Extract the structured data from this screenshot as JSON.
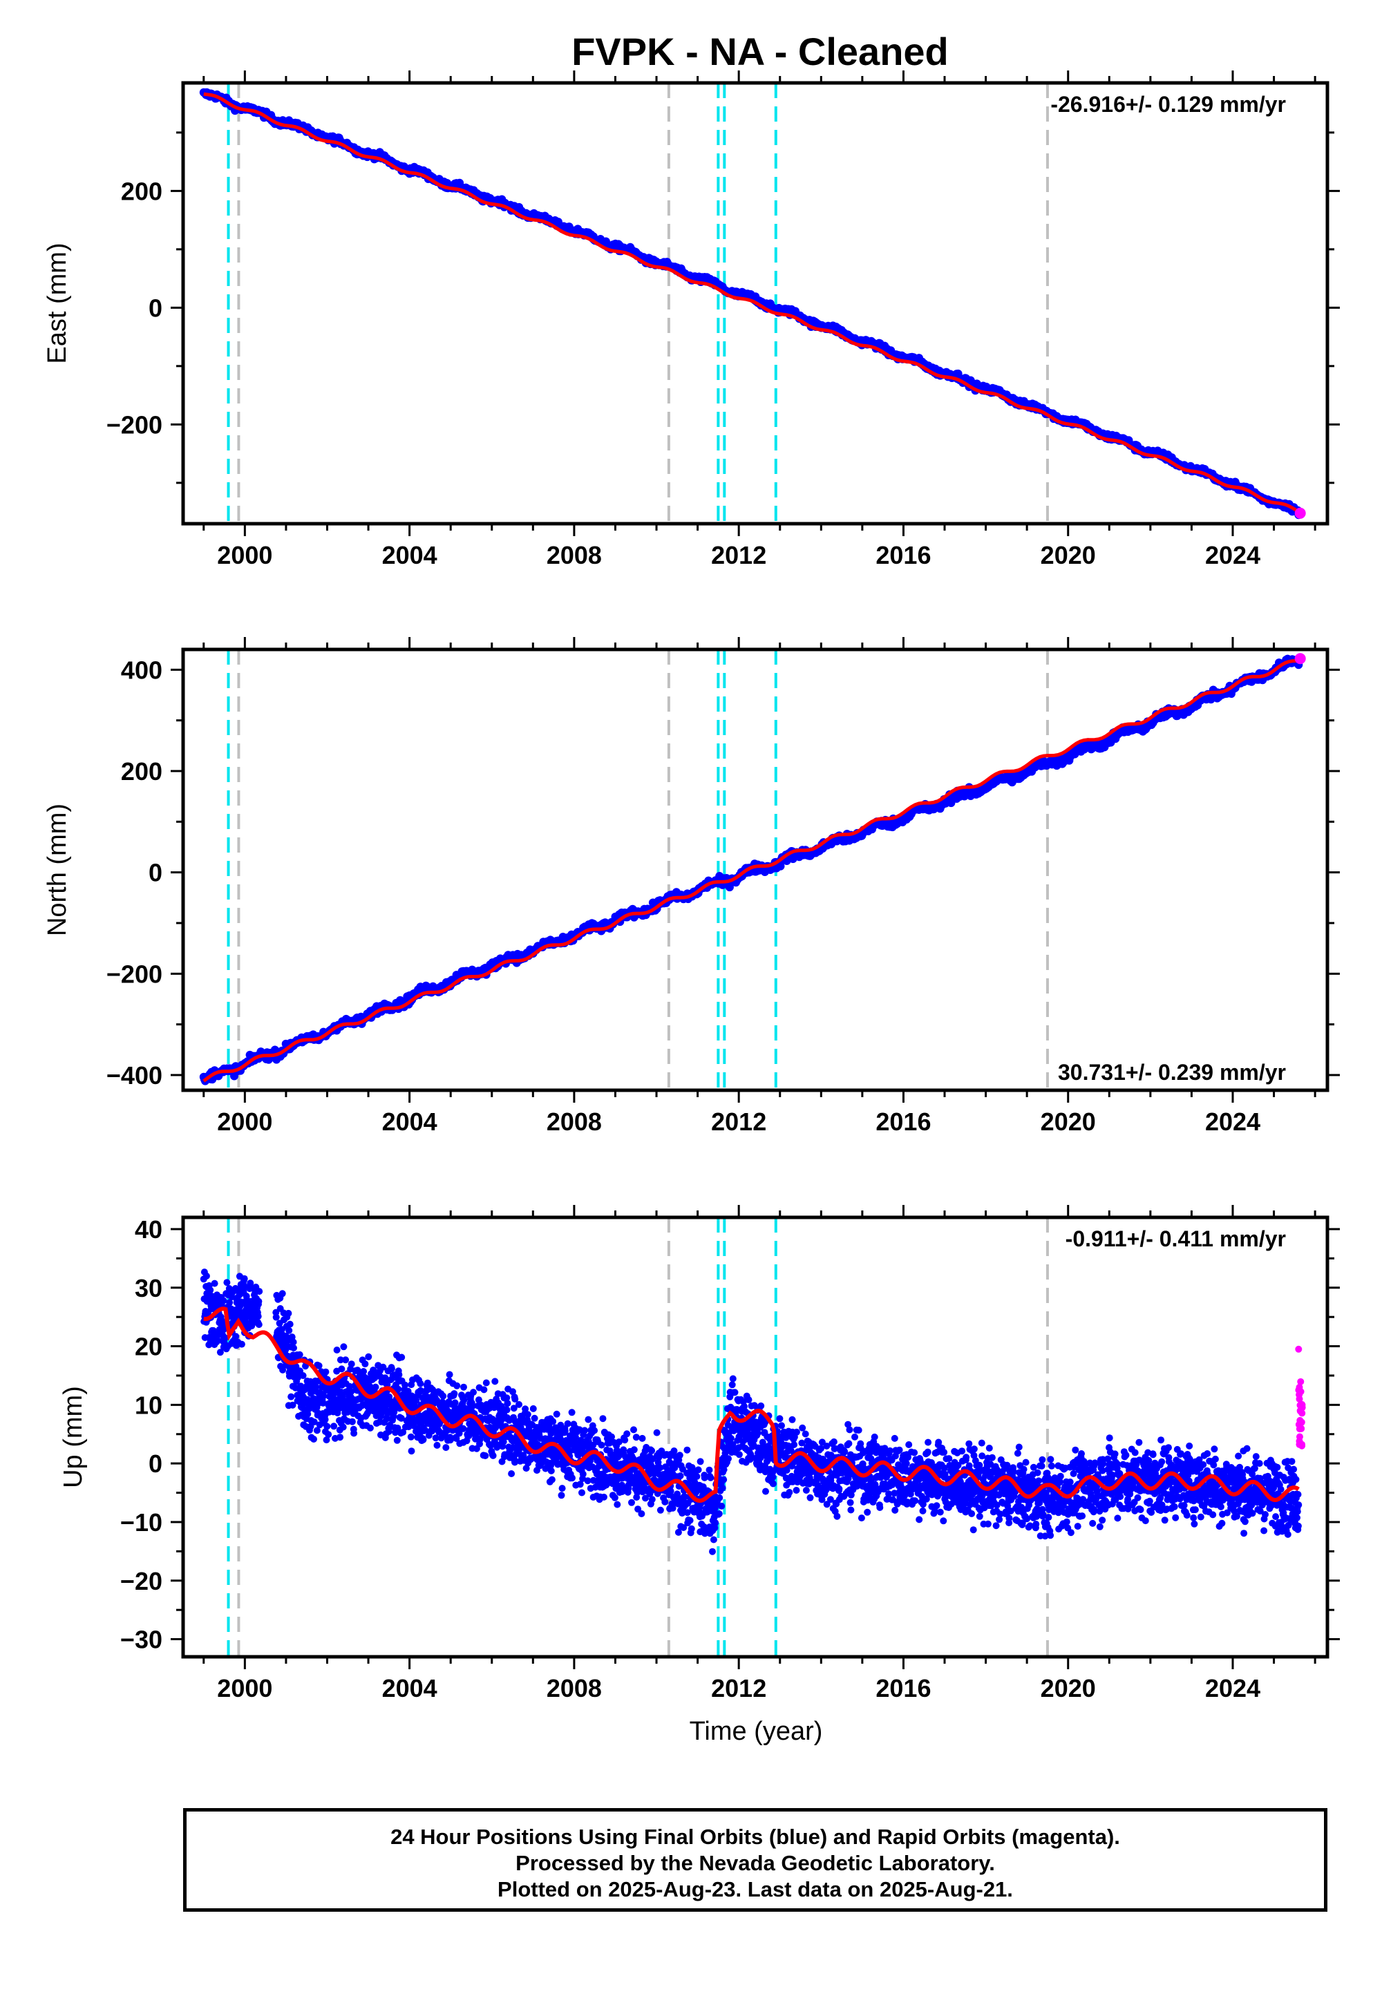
{
  "title": "FVPK  - NA - Cleaned",
  "xlabel": "Time (year)",
  "footer": {
    "line1": "24 Hour Positions Using Final Orbits (blue) and Rapid Orbits (magenta).",
    "line2": "Processed by the Nevada Geodetic Laboratory.",
    "line3": "Plotted on 2025-Aug-23. Last data on 2025-Aug-21."
  },
  "colors": {
    "final_orbits": "#0000ff",
    "rapid_orbits": "#ff00ff",
    "model": "#ff0000",
    "equipment_change": "#00e5ee",
    "earthquake": "#c0c0c0"
  },
  "chart_data": [
    {
      "type": "scatter",
      "ylabel": "East (mm)",
      "rate_text": "-26.916+/- 0.129 mm/yr",
      "rate_position": "top-right",
      "xlim": [
        1998.5,
        2026.3
      ],
      "ylim": [
        -370,
        385
      ],
      "xticks": [
        2000,
        2004,
        2008,
        2012,
        2016,
        2020,
        2024
      ],
      "yticks": [
        -200,
        0,
        200
      ],
      "series": [
        {
          "name": "Final Orbits",
          "color": "#0000ff",
          "x": [
            1999.0,
            2002.0,
            2005.0,
            2008.0,
            2011.0,
            2014.0,
            2017.0,
            2020.0,
            2023.0,
            2025.6
          ],
          "y": [
            367,
            291,
            210,
            132,
            50,
            -30,
            -112,
            -193,
            -275,
            -350
          ]
        },
        {
          "name": "Rapid Orbits",
          "color": "#ff00ff",
          "x": [
            2025.64
          ],
          "y": [
            -352
          ]
        },
        {
          "name": "Model",
          "color": "#ff0000",
          "x": [
            1999.0,
            2025.64
          ],
          "y": [
            367,
            -350
          ]
        }
      ],
      "vlines": [
        {
          "x": 1999.6,
          "kind": "equipment"
        },
        {
          "x": 1999.85,
          "kind": "earthquake"
        },
        {
          "x": 2010.3,
          "kind": "earthquake"
        },
        {
          "x": 2011.5,
          "kind": "equipment"
        },
        {
          "x": 2011.65,
          "kind": "equipment"
        },
        {
          "x": 2012.9,
          "kind": "equipment"
        },
        {
          "x": 2019.5,
          "kind": "earthquake"
        }
      ]
    },
    {
      "type": "scatter",
      "ylabel": "North (mm)",
      "rate_text": "30.731+/- 0.239 mm/yr",
      "rate_position": "bottom-right",
      "xlim": [
        1998.5,
        2026.3
      ],
      "ylim": [
        -430,
        440
      ],
      "xticks": [
        2000,
        2004,
        2008,
        2012,
        2016,
        2020,
        2024
      ],
      "yticks": [
        -400,
        -200,
        0,
        200,
        400
      ],
      "series": [
        {
          "name": "Final Orbits",
          "color": "#0000ff",
          "x": [
            1999.0,
            2002.0,
            2005.0,
            2008.0,
            2011.0,
            2014.0,
            2017.0,
            2020.0,
            2023.0,
            2025.6
          ],
          "y": [
            -410,
            -315,
            -215,
            -125,
            -35,
            50,
            140,
            230,
            330,
            420
          ]
        },
        {
          "name": "Rapid Orbits",
          "color": "#ff00ff",
          "x": [
            2025.64
          ],
          "y": [
            422
          ]
        },
        {
          "name": "Model",
          "color": "#ff0000",
          "x": [
            1999.0,
            2025.64
          ],
          "y": [
            -410,
            420
          ]
        }
      ],
      "vlines": [
        {
          "x": 1999.6,
          "kind": "equipment"
        },
        {
          "x": 1999.85,
          "kind": "earthquake"
        },
        {
          "x": 2010.3,
          "kind": "earthquake"
        },
        {
          "x": 2011.5,
          "kind": "equipment"
        },
        {
          "x": 2011.65,
          "kind": "equipment"
        },
        {
          "x": 2012.9,
          "kind": "equipment"
        },
        {
          "x": 2019.5,
          "kind": "earthquake"
        }
      ]
    },
    {
      "type": "scatter",
      "ylabel": "Up (mm)",
      "rate_text": "-0.911+/- 0.411 mm/yr",
      "rate_position": "top-right",
      "xlim": [
        1998.5,
        2026.3
      ],
      "ylim": [
        -33,
        42
      ],
      "xticks": [
        2000,
        2004,
        2008,
        2012,
        2016,
        2020,
        2024
      ],
      "yticks": [
        -30,
        -20,
        -10,
        0,
        10,
        20,
        30,
        40
      ],
      "series": [
        {
          "name": "Final Orbits",
          "color": "#0000ff",
          "x": [
            1999.0,
            1999.5,
            2000.0,
            2000.8,
            2001.5,
            2003.0,
            2004.5,
            2006.0,
            2007.5,
            2009.0,
            2010.5,
            2011.4,
            2011.8,
            2012.8,
            2014.0,
            2016.0,
            2018.0,
            2019.5,
            2021.0,
            2023.0,
            2025.6
          ],
          "y": [
            27,
            24,
            27,
            24,
            10,
            12,
            9,
            7,
            3,
            0,
            -4,
            -8,
            8,
            2,
            -1,
            -2,
            -4,
            -6,
            -3,
            -3,
            -6
          ]
        },
        {
          "name": "Rapid Orbits",
          "color": "#ff00ff",
          "x": [
            2025.6,
            2025.62,
            2025.64,
            2025.66,
            2025.68
          ],
          "y": [
            19.5,
            13,
            9,
            6,
            3
          ]
        },
        {
          "name": "Model",
          "color": "#ff0000",
          "x": [
            1999.0,
            1999.55,
            1999.6,
            1999.85,
            2000.2,
            2000.8,
            2001.5,
            2002.5,
            2003.5,
            2004.5,
            2006.0,
            2007.5,
            2009.0,
            2010.3,
            2011.0,
            2011.45,
            2011.5,
            2011.8,
            2012.85,
            2012.9,
            2014.0,
            2016.0,
            2018.0,
            2019.5,
            2021.0,
            2023.0,
            2025.6
          ],
          "y": [
            26,
            25,
            20.5,
            25,
            22,
            20,
            16,
            14,
            11.5,
            8.5,
            6,
            2,
            0,
            -4,
            -5,
            -6,
            4,
            9,
            7,
            1,
            0,
            -1.5,
            -3,
            -5,
            -3,
            -3,
            -5.5
          ]
        }
      ],
      "vlines": [
        {
          "x": 1999.6,
          "kind": "equipment"
        },
        {
          "x": 1999.85,
          "kind": "earthquake"
        },
        {
          "x": 2010.3,
          "kind": "earthquake"
        },
        {
          "x": 2011.5,
          "kind": "equipment"
        },
        {
          "x": 2011.65,
          "kind": "equipment"
        },
        {
          "x": 2012.9,
          "kind": "equipment"
        },
        {
          "x": 2019.5,
          "kind": "earthquake"
        }
      ]
    }
  ]
}
